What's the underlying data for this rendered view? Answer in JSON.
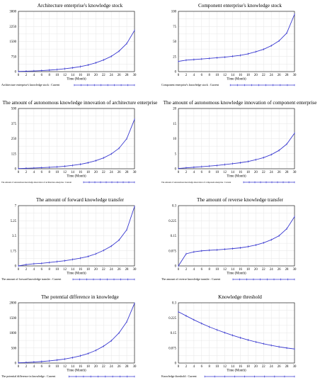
{
  "series_color": "#3a3ad0",
  "chart_data": [
    {
      "type": "line",
      "title": "Architecture enterprise's knowledge stock",
      "xlabel": "Time (Month)",
      "ylabel": "",
      "x": [
        0,
        2,
        4,
        6,
        8,
        10,
        12,
        14,
        16,
        18,
        20,
        22,
        24,
        26,
        28,
        30
      ],
      "ylim": [
        0,
        3000
      ],
      "xlim": [
        0,
        30
      ],
      "yticks": [
        "3000",
        "2250",
        "1500",
        "750",
        "0"
      ],
      "yticks_num": [
        3000,
        2250,
        1500,
        750,
        0
      ],
      "series": [
        {
          "name": "Architecture enterprise's knowledge stock : Current",
          "values": [
            10,
            20,
            34,
            52,
            75,
            104,
            143,
            190,
            250,
            330,
            440,
            580,
            760,
            1020,
            1400,
            2050
          ]
        }
      ],
      "legend_placement": "bottom",
      "grid": true
    },
    {
      "type": "line",
      "title": "Component enterprise's knowledge stock",
      "xlabel": "Time (Month)",
      "ylabel": "",
      "x": [
        0,
        2,
        4,
        6,
        8,
        10,
        12,
        14,
        16,
        18,
        20,
        22,
        24,
        26,
        28,
        30
      ],
      "ylim": [
        0,
        100
      ],
      "xlim": [
        0,
        30
      ],
      "yticks": [
        "100",
        "75",
        "50",
        "25",
        "0"
      ],
      "yticks_num": [
        100,
        75,
        50,
        25,
        0
      ],
      "series": [
        {
          "name": "Component enterprise's knowledge stock : Current",
          "values": [
            17,
            19,
            20,
            21,
            22,
            23,
            24,
            25.5,
            27,
            29.5,
            33,
            37,
            43,
            51,
            64,
            95
          ]
        }
      ],
      "legend_placement": "bottom",
      "grid": true
    },
    {
      "type": "line",
      "title": "The amount of autonomous knowledge innovation of architecture enterprise",
      "xlabel": "Time (Month)",
      "ylabel": "",
      "x": [
        0,
        2,
        4,
        6,
        8,
        10,
        12,
        14,
        16,
        18,
        20,
        22,
        24,
        26,
        28,
        30
      ],
      "ylim": [
        0,
        500
      ],
      "xlim": [
        0,
        30
      ],
      "yticks": [
        "500",
        "375",
        "250",
        "125",
        "0"
      ],
      "yticks_num": [
        500,
        375,
        250,
        125,
        0
      ],
      "series": [
        {
          "name": "The amount of autonomous knowledge innovation of architecture enterprise : Current",
          "values": [
            2,
            4,
            6,
            9,
            12,
            16,
            21,
            28,
            37,
            50,
            67,
            90,
            123,
            170,
            250,
            410
          ]
        }
      ],
      "legend_placement": "bottom",
      "grid": true
    },
    {
      "type": "line",
      "title": "The amount of autonomous knowledge innovation of component enterprise",
      "xlabel": "Time (Month)",
      "ylabel": "",
      "x": [
        0,
        2,
        4,
        6,
        8,
        10,
        12,
        14,
        16,
        18,
        20,
        22,
        24,
        26,
        28,
        30
      ],
      "ylim": [
        0,
        20
      ],
      "xlim": [
        0,
        30
      ],
      "yticks": [
        "20",
        "15",
        "10",
        "5",
        "0"
      ],
      "yticks_num": [
        20,
        15,
        10,
        5,
        0
      ],
      "series": [
        {
          "name": "The amount of autonomous knowledge innovation of component enterprise : Current",
          "values": [
            0.1,
            0.3,
            0.5,
            0.7,
            0.9,
            1.1,
            1.4,
            1.7,
            2.0,
            2.4,
            3.0,
            3.7,
            4.7,
            6.1,
            8.2,
            11.8
          ]
        }
      ],
      "legend_placement": "bottom",
      "grid": true
    },
    {
      "type": "line",
      "title": "The amount of forward knowledge transfer",
      "xlabel": "Time (Month)",
      "ylabel": "",
      "x": [
        0,
        2,
        4,
        6,
        8,
        10,
        12,
        14,
        16,
        18,
        20,
        22,
        24,
        26,
        28,
        30
      ],
      "ylim": [
        0,
        7
      ],
      "xlim": [
        0,
        30
      ],
      "yticks": [
        "7",
        "5.25",
        "3.5",
        "1.75",
        "0"
      ],
      "yticks_num": [
        7,
        5.25,
        3.5,
        1.75,
        0
      ],
      "series": [
        {
          "name": "The amount of forward knowledge transfer : Current",
          "values": [
            0,
            0.15,
            0.25,
            0.3,
            0.4,
            0.5,
            0.6,
            0.75,
            0.9,
            1.1,
            1.4,
            1.8,
            2.3,
            3.0,
            4.2,
            6.9
          ]
        }
      ],
      "legend_placement": "bottom",
      "grid": true
    },
    {
      "type": "line",
      "title": "The amount of reverse knowledge transfer",
      "xlabel": "Time (Month)",
      "ylabel": "",
      "x": [
        0,
        2,
        4,
        6,
        8,
        10,
        12,
        14,
        16,
        18,
        20,
        22,
        24,
        26,
        28,
        30
      ],
      "ylim": [
        0,
        0.3
      ],
      "xlim": [
        0,
        30
      ],
      "yticks": [
        "0.3",
        "0.225",
        "0.15",
        "0.075",
        "0"
      ],
      "yticks_num": [
        0.3,
        0.225,
        0.15,
        0.075,
        0
      ],
      "series": [
        {
          "name": "The amount of reverse knowledge transfer : Current",
          "values": [
            0.0,
            0.06,
            0.07,
            0.075,
            0.078,
            0.08,
            0.083,
            0.086,
            0.09,
            0.096,
            0.104,
            0.115,
            0.13,
            0.15,
            0.185,
            0.245
          ]
        }
      ],
      "legend_placement": "bottom",
      "grid": true
    },
    {
      "type": "line",
      "title": "The potential difference in knowledge",
      "xlabel": "Time (Month)",
      "ylabel": "",
      "x": [
        0,
        2,
        4,
        6,
        8,
        10,
        12,
        14,
        16,
        18,
        20,
        22,
        24,
        26,
        28,
        30
      ],
      "ylim": [
        0,
        2000
      ],
      "xlim": [
        0,
        30
      ],
      "yticks": [
        "2000",
        "1500",
        "1000",
        "500",
        "0"
      ],
      "yticks_num": [
        2000,
        1500,
        1000,
        500,
        0
      ],
      "series": [
        {
          "name": "The potential difference in knowledge : Current",
          "values": [
            10,
            20,
            33,
            50,
            72,
            100,
            135,
            180,
            240,
            315,
            420,
            560,
            740,
            1000,
            1370,
            1980
          ]
        }
      ],
      "legend_placement": "bottom",
      "grid": true
    },
    {
      "type": "line",
      "title": "Knowledge threshold",
      "xlabel": "Time (Month)",
      "ylabel": "",
      "x": [
        0,
        2,
        4,
        6,
        8,
        10,
        12,
        14,
        16,
        18,
        20,
        22,
        24,
        26,
        28,
        30
      ],
      "ylim": [
        0,
        0.3
      ],
      "xlim": [
        0,
        30
      ],
      "yticks": [
        "0.3",
        "0.225",
        "0.15",
        "0.075",
        "0"
      ],
      "yticks_num": [
        0.3,
        0.225,
        0.15,
        0.075,
        0
      ],
      "series": [
        {
          "name": "Knowledge threshold : Current",
          "values": [
            0.255,
            0.235,
            0.215,
            0.197,
            0.18,
            0.165,
            0.151,
            0.138,
            0.126,
            0.115,
            0.105,
            0.096,
            0.088,
            0.081,
            0.075,
            0.07
          ]
        }
      ],
      "legend_placement": "bottom",
      "grid": true
    }
  ]
}
